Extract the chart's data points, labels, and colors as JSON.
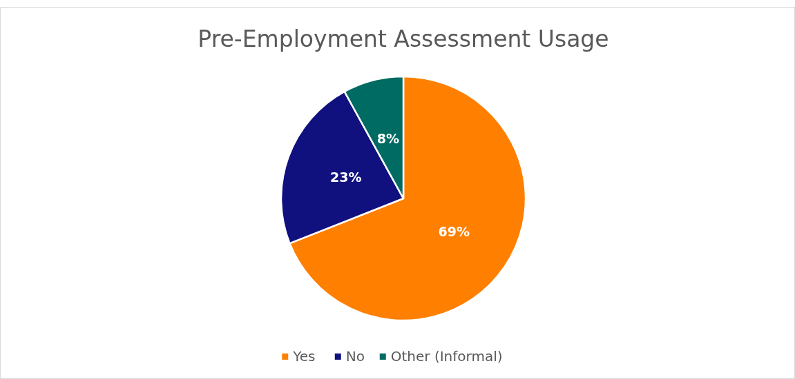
{
  "chart_data": {
    "type": "pie",
    "title": "Pre-Employment Assessment Usage",
    "categories": [
      "Yes",
      "No",
      "Other (Informal)"
    ],
    "values": [
      69,
      23,
      8
    ],
    "colors": [
      "#ff8000",
      "#10107f",
      "#006b62"
    ],
    "value_labels": [
      "69%",
      "23%",
      "8%"
    ],
    "legend": "bottom"
  }
}
